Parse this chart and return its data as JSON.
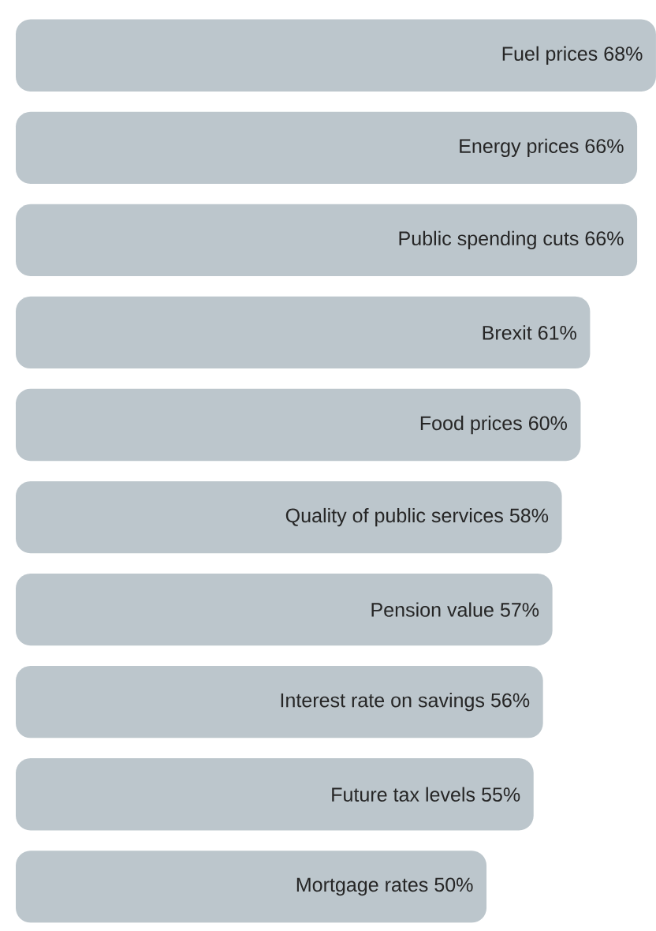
{
  "chart_data": {
    "type": "bar",
    "orientation": "horizontal",
    "color": "#bcc6cc",
    "categories": [
      "Fuel prices",
      "Energy prices",
      "Public spending cuts",
      "Brexit",
      "Food prices",
      "Quality of public services",
      "Pension value",
      "Interest rate on savings",
      "Future tax levels",
      "Mortgage rates"
    ],
    "values": [
      68,
      66,
      66,
      61,
      60,
      58,
      57,
      56,
      55,
      50
    ],
    "value_labels": [
      "68%",
      "66%",
      "66%",
      "61%",
      "60%",
      "58%",
      "57%",
      "56%",
      "55%",
      "50%"
    ]
  }
}
